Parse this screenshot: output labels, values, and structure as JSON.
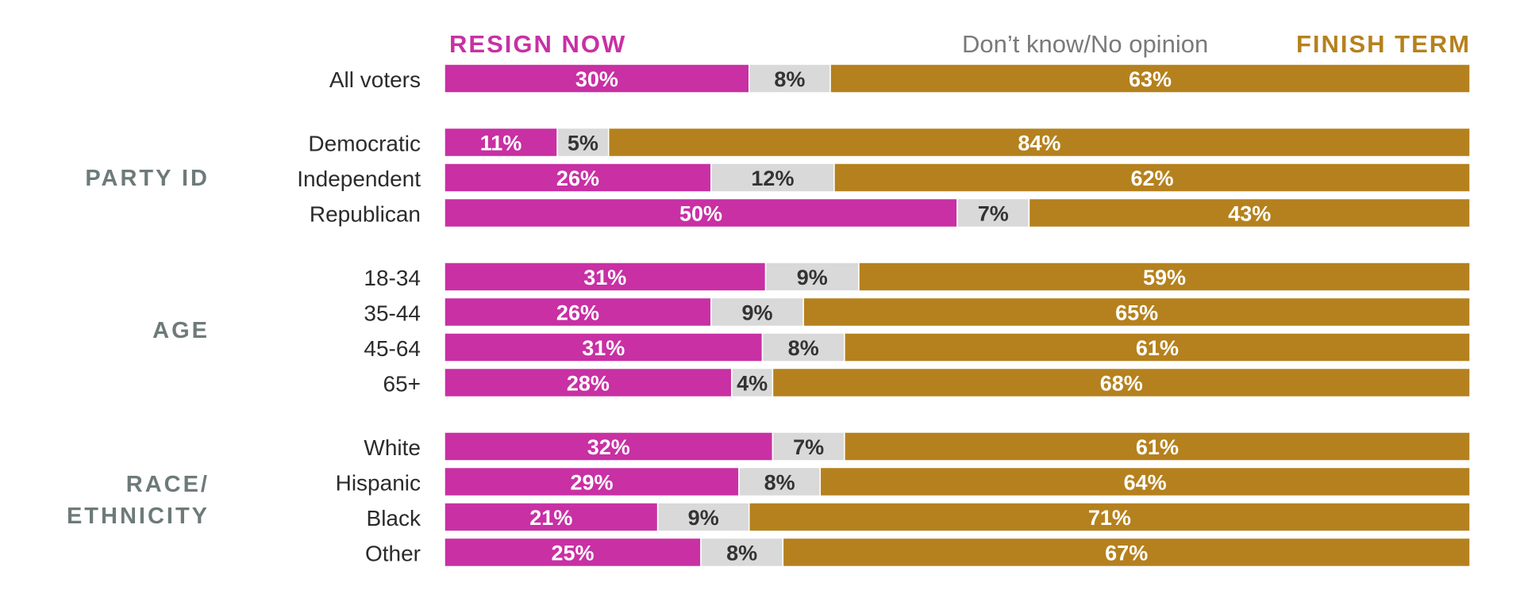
{
  "chart_data": {
    "type": "bar",
    "orientation": "horizontal",
    "stacked": true,
    "series": [
      {
        "name": "RESIGN NOW",
        "color": "#C830A4"
      },
      {
        "name": "Don’t know/No opinion",
        "color": "#D9D9D9"
      },
      {
        "name": "FINISH TERM",
        "color": "#B5811E"
      }
    ],
    "groups": [
      {
        "label": "",
        "rows": [
          {
            "label": "All voters",
            "values": [
              30,
              8,
              63
            ]
          }
        ]
      },
      {
        "label": "PARTY ID",
        "rows": [
          {
            "label": "Democratic",
            "values": [
              11,
              5,
              84
            ]
          },
          {
            "label": "Independent",
            "values": [
              26,
              12,
              62
            ]
          },
          {
            "label": "Republican",
            "values": [
              50,
              7,
              43
            ]
          }
        ]
      },
      {
        "label": "AGE",
        "rows": [
          {
            "label": "18-34",
            "values": [
              31,
              9,
              59
            ]
          },
          {
            "label": "35-44",
            "values": [
              26,
              9,
              65
            ]
          },
          {
            "label": "45-64",
            "values": [
              31,
              8,
              61
            ]
          },
          {
            "label": "65+",
            "values": [
              28,
              4,
              68
            ]
          }
        ]
      },
      {
        "label": "RACE/\nETHNICITY",
        "rows": [
          {
            "label": "White",
            "values": [
              32,
              7,
              61
            ]
          },
          {
            "label": "Hispanic",
            "values": [
              29,
              8,
              64
            ]
          },
          {
            "label": "Black",
            "values": [
              21,
              9,
              71
            ]
          },
          {
            "label": "Other",
            "values": [
              25,
              8,
              67
            ]
          }
        ]
      }
    ],
    "value_suffix": "%",
    "legend_position": "top"
  }
}
